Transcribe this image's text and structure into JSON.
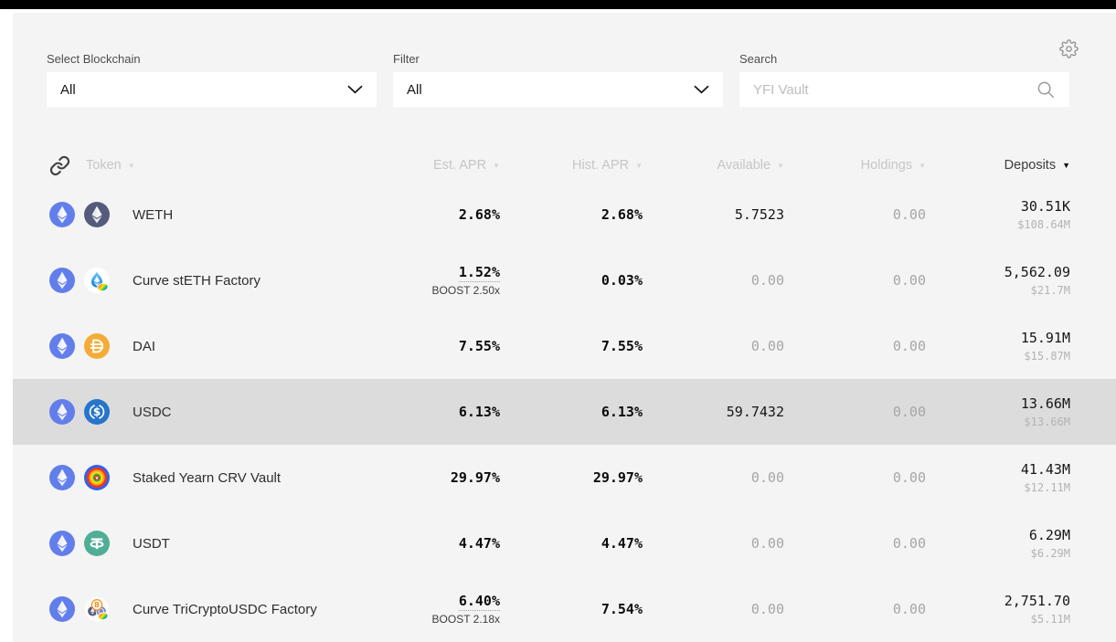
{
  "filters": {
    "blockchain": {
      "label": "Select Blockchain",
      "value": "All"
    },
    "filter": {
      "label": "Filter",
      "value": "All"
    },
    "search": {
      "label": "Search",
      "placeholder": "YFI Vault"
    }
  },
  "icons": {
    "settings": "gear-outline",
    "search": "magnifier",
    "select": "chevron-down",
    "token_column": "chain-link",
    "sort": "triangle-down"
  },
  "table": {
    "columns": [
      {
        "label": "Token",
        "sorted": "none"
      },
      {
        "label": "Est. APR",
        "sorted": "none"
      },
      {
        "label": "Hist. APR",
        "sorted": "none"
      },
      {
        "label": "Available",
        "sorted": "none"
      },
      {
        "label": "Holdings",
        "sorted": "none"
      },
      {
        "label": "Deposits",
        "sorted": "desc"
      }
    ],
    "rows": [
      {
        "name": "WETH",
        "icon": "weth",
        "est_apr": "2.68%",
        "boost": null,
        "hist_apr": "2.68%",
        "available": "5.7523",
        "available_muted": false,
        "holdings": "0.00",
        "deposits": "30.51K",
        "deposits_usd": "$108.64M",
        "highlighted": false
      },
      {
        "name": "Curve stETH Factory",
        "icon": "steth",
        "est_apr": "1.52%",
        "boost": "BOOST 2.50x",
        "hist_apr": "0.03%",
        "available": "0.00",
        "available_muted": true,
        "holdings": "0.00",
        "deposits": "5,562.09",
        "deposits_usd": "$21.7M",
        "highlighted": false
      },
      {
        "name": "DAI",
        "icon": "dai",
        "est_apr": "7.55%",
        "boost": null,
        "hist_apr": "7.55%",
        "available": "0.00",
        "available_muted": true,
        "holdings": "0.00",
        "deposits": "15.91M",
        "deposits_usd": "$15.87M",
        "highlighted": false
      },
      {
        "name": "USDC",
        "icon": "usdc",
        "est_apr": "6.13%",
        "boost": null,
        "hist_apr": "6.13%",
        "available": "59.7432",
        "available_muted": false,
        "holdings": "0.00",
        "deposits": "13.66M",
        "deposits_usd": "$13.66M",
        "highlighted": true
      },
      {
        "name": "Staked Yearn CRV Vault",
        "icon": "stycrv",
        "est_apr": "29.97%",
        "boost": null,
        "hist_apr": "29.97%",
        "available": "0.00",
        "available_muted": true,
        "holdings": "0.00",
        "deposits": "41.43M",
        "deposits_usd": "$12.11M",
        "highlighted": false
      },
      {
        "name": "USDT",
        "icon": "usdt",
        "est_apr": "4.47%",
        "boost": null,
        "hist_apr": "4.47%",
        "available": "0.00",
        "available_muted": true,
        "holdings": "0.00",
        "deposits": "6.29M",
        "deposits_usd": "$6.29M",
        "highlighted": false
      },
      {
        "name": "Curve TriCryptoUSDC Factory",
        "icon": "tricrypto",
        "est_apr": "6.40%",
        "boost": "BOOST 2.18x",
        "hist_apr": "7.54%",
        "available": "0.00",
        "available_muted": true,
        "holdings": "0.00",
        "deposits": "2,751.70",
        "deposits_usd": "$5.11M",
        "highlighted": false
      }
    ]
  },
  "colors": {
    "panel_bg": "#f4f4f4",
    "row_highlight": "#dcdcdc",
    "eth_chain_badge": "#627eea",
    "weth": "#565a7c",
    "dai": "#f5ac37",
    "usdc": "#2775ca",
    "usdt": "#4fae94",
    "text_dark": "#161616",
    "text_muted": "#a6a6a6",
    "header_inactive": "#c6c6c6",
    "header_active": "#3c3c3c"
  }
}
